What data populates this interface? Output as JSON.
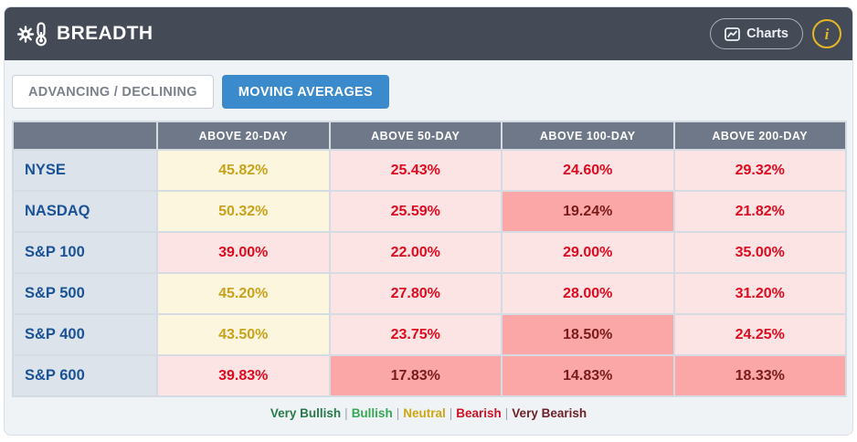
{
  "header": {
    "title": "BREADTH",
    "charts_button_label": "Charts",
    "info_button_label": "i"
  },
  "tabs": [
    {
      "label": "ADVANCING / DECLINING",
      "active": false
    },
    {
      "label": "MOVING AVERAGES",
      "active": true
    }
  ],
  "table": {
    "columns": [
      "ABOVE 20-DAY",
      "ABOVE 50-DAY",
      "ABOVE 100-DAY",
      "ABOVE 200-DAY"
    ],
    "rows": [
      {
        "label": "NYSE",
        "cells": [
          {
            "value": "45.82%",
            "status": "neutral"
          },
          {
            "value": "25.43%",
            "status": "bearish"
          },
          {
            "value": "24.60%",
            "status": "bearish"
          },
          {
            "value": "29.32%",
            "status": "bearish"
          }
        ]
      },
      {
        "label": "NASDAQ",
        "cells": [
          {
            "value": "50.32%",
            "status": "neutral"
          },
          {
            "value": "25.59%",
            "status": "bearish"
          },
          {
            "value": "19.24%",
            "status": "very_bearish"
          },
          {
            "value": "21.82%",
            "status": "bearish"
          }
        ]
      },
      {
        "label": "S&P 100",
        "cells": [
          {
            "value": "39.00%",
            "status": "bearish"
          },
          {
            "value": "22.00%",
            "status": "bearish"
          },
          {
            "value": "29.00%",
            "status": "bearish"
          },
          {
            "value": "35.00%",
            "status": "bearish"
          }
        ]
      },
      {
        "label": "S&P 500",
        "cells": [
          {
            "value": "45.20%",
            "status": "neutral"
          },
          {
            "value": "27.80%",
            "status": "bearish"
          },
          {
            "value": "28.00%",
            "status": "bearish"
          },
          {
            "value": "31.20%",
            "status": "bearish"
          }
        ]
      },
      {
        "label": "S&P 400",
        "cells": [
          {
            "value": "43.50%",
            "status": "neutral"
          },
          {
            "value": "23.75%",
            "status": "bearish"
          },
          {
            "value": "18.50%",
            "status": "very_bearish"
          },
          {
            "value": "24.25%",
            "status": "bearish"
          }
        ]
      },
      {
        "label": "S&P 600",
        "cells": [
          {
            "value": "39.83%",
            "status": "bearish"
          },
          {
            "value": "17.83%",
            "status": "very_bearish"
          },
          {
            "value": "14.83%",
            "status": "very_bearish"
          },
          {
            "value": "18.33%",
            "status": "very_bearish"
          }
        ]
      }
    ]
  },
  "legend": {
    "separator": "|",
    "items": [
      {
        "label": "Very Bullish",
        "color": "#27794a"
      },
      {
        "label": "Bullish",
        "color": "#35a853"
      },
      {
        "label": "Neutral",
        "color": "#cda613"
      },
      {
        "label": "Bearish",
        "color": "#cc1122"
      },
      {
        "label": "Very Bearish",
        "color": "#6e1e26"
      }
    ]
  },
  "colors": {
    "header_bg": "#444b57",
    "accent_blue": "#3b8bcc",
    "table_header_bg": "#6e7888",
    "row_label_text": "#1a5296",
    "row_label_bg": "#dce3ea",
    "neutral_bg": "#fdf6df",
    "neutral_text": "#c9a21b",
    "bearish_bg": "#fce4e4",
    "bearish_text": "#de0a1f",
    "very_bearish_bg": "#fba7a7",
    "very_bearish_text": "#7a1a1a",
    "info_yellow": "#e6b723"
  }
}
